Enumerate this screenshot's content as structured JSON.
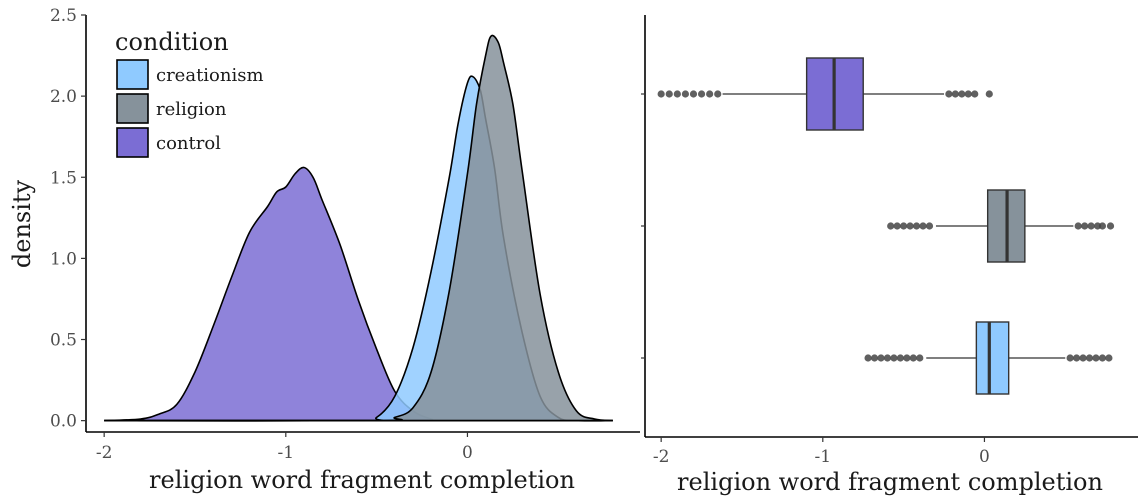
{
  "chart_data": [
    {
      "type": "area",
      "subtype": "density",
      "xlabel": "religion word fragment completion",
      "ylabel": "density",
      "xlim": [
        -2.1,
        0.95
      ],
      "ylim": [
        -0.07,
        2.5
      ],
      "x_ticks": [
        "-2",
        "-1",
        "0"
      ],
      "x_tick_values": [
        -2,
        -1,
        0
      ],
      "y_ticks": [
        "0.0",
        "0.5",
        "1.0",
        "1.5",
        "2.0",
        "2.5"
      ],
      "y_tick_values": [
        0.0,
        0.5,
        1.0,
        1.5,
        2.0,
        2.5
      ],
      "grid": false,
      "legend": {
        "title": "condition",
        "position": "top-left",
        "entries": [
          "creationism",
          "religion",
          "control"
        ]
      },
      "series": [
        {
          "name": "control",
          "color": "#7b6dd4",
          "points": [
            [
              -2.0,
              0.0
            ],
            [
              -1.8,
              0.01
            ],
            [
              -1.7,
              0.04
            ],
            [
              -1.6,
              0.1
            ],
            [
              -1.5,
              0.3
            ],
            [
              -1.4,
              0.58
            ],
            [
              -1.3,
              0.88
            ],
            [
              -1.2,
              1.16
            ],
            [
              -1.1,
              1.32
            ],
            [
              -1.05,
              1.41
            ],
            [
              -1.0,
              1.44
            ],
            [
              -0.95,
              1.52
            ],
            [
              -0.9,
              1.56
            ],
            [
              -0.85,
              1.5
            ],
            [
              -0.8,
              1.36
            ],
            [
              -0.7,
              1.08
            ],
            [
              -0.6,
              0.74
            ],
            [
              -0.5,
              0.44
            ],
            [
              -0.4,
              0.18
            ],
            [
              -0.3,
              0.06
            ],
            [
              -0.2,
              0.01
            ],
            [
              -0.1,
              0.0
            ],
            [
              0.8,
              0.0
            ]
          ]
        },
        {
          "name": "creationism",
          "color": "#8fcaff",
          "points": [
            [
              -2.0,
              0.0
            ],
            [
              -0.6,
              0.0
            ],
            [
              -0.5,
              0.02
            ],
            [
              -0.4,
              0.15
            ],
            [
              -0.3,
              0.45
            ],
            [
              -0.2,
              0.92
            ],
            [
              -0.1,
              1.5
            ],
            [
              -0.05,
              1.84
            ],
            [
              0.0,
              2.08
            ],
            [
              0.03,
              2.12
            ],
            [
              0.07,
              2.04
            ],
            [
              0.1,
              1.86
            ],
            [
              0.15,
              1.55
            ],
            [
              0.2,
              1.12
            ],
            [
              0.3,
              0.55
            ],
            [
              0.4,
              0.15
            ],
            [
              0.5,
              0.02
            ],
            [
              0.6,
              0.0
            ],
            [
              0.8,
              0.0
            ]
          ]
        },
        {
          "name": "religion",
          "color": "#86929b",
          "points": [
            [
              -2.0,
              0.0
            ],
            [
              -0.5,
              0.0
            ],
            [
              -0.4,
              0.02
            ],
            [
              -0.3,
              0.08
            ],
            [
              -0.2,
              0.3
            ],
            [
              -0.1,
              0.8
            ],
            [
              0.0,
              1.52
            ],
            [
              0.05,
              1.95
            ],
            [
              0.1,
              2.25
            ],
            [
              0.13,
              2.37
            ],
            [
              0.17,
              2.33
            ],
            [
              0.2,
              2.2
            ],
            [
              0.25,
              1.95
            ],
            [
              0.3,
              1.55
            ],
            [
              0.4,
              0.78
            ],
            [
              0.5,
              0.3
            ],
            [
              0.6,
              0.06
            ],
            [
              0.7,
              0.01
            ],
            [
              0.8,
              0.0
            ]
          ]
        }
      ]
    },
    {
      "type": "boxplot",
      "orientation": "horizontal",
      "xlabel": "religion word fragment completion",
      "ylabel": "",
      "xlim": [
        -2.1,
        0.95
      ],
      "x_ticks": [
        "-2",
        "-1",
        "0"
      ],
      "x_tick_values": [
        -2,
        -1,
        0
      ],
      "grid": false,
      "boxes": [
        {
          "name": "control",
          "color": "#7b6dd4",
          "whisker_low": -1.62,
          "q1": -1.1,
          "median": -0.93,
          "q3": -0.75,
          "whisker_high": -0.25,
          "outliers_low": [
            -2.0,
            -1.95,
            -1.9,
            -1.85,
            -1.8,
            -1.75,
            -1.7,
            -1.65
          ],
          "outliers_high": [
            -0.22,
            -0.18,
            -0.14,
            -0.1,
            -0.06,
            0.03
          ]
        },
        {
          "name": "religion",
          "color": "#86929b",
          "whisker_low": -0.3,
          "q1": 0.02,
          "median": 0.14,
          "q3": 0.25,
          "whisker_high": 0.55,
          "outliers_low": [
            -0.58,
            -0.54,
            -0.5,
            -0.46,
            -0.42,
            -0.38,
            -0.34
          ],
          "outliers_high": [
            0.58,
            0.62,
            0.66,
            0.7,
            0.73,
            0.78
          ]
        },
        {
          "name": "creationism",
          "color": "#8fcaff",
          "whisker_low": -0.36,
          "q1": -0.05,
          "median": 0.03,
          "q3": 0.15,
          "whisker_high": 0.5,
          "outliers_low": [
            -0.72,
            -0.68,
            -0.64,
            -0.6,
            -0.56,
            -0.52,
            -0.48,
            -0.44,
            -0.4
          ],
          "outliers_high": [
            0.53,
            0.57,
            0.61,
            0.65,
            0.69,
            0.73,
            0.77
          ]
        }
      ]
    }
  ]
}
